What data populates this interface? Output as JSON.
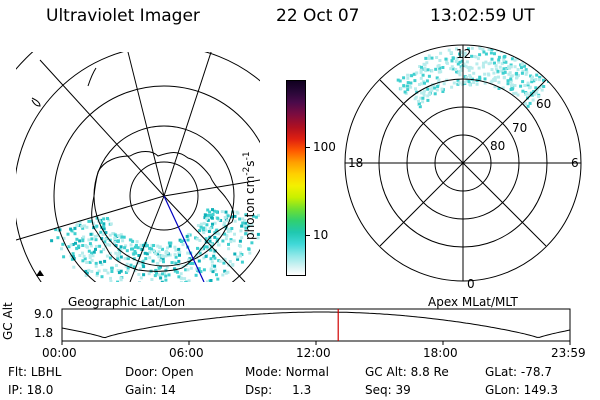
{
  "header": {
    "title": "Ultraviolet Imager",
    "date": "22 Oct 07",
    "time": "13:02:59 UT"
  },
  "colorbar": {
    "ticks": [
      "100",
      "10"
    ],
    "unit_main": "photon cm",
    "unit_sup1": "-2",
    "unit_s": "s",
    "unit_sup2": "-1"
  },
  "maps": {
    "left_label": "Geographic Lat/Lon",
    "right_label": "Apex MLat/MLT",
    "right_mlt": {
      "top": "12",
      "left": "18",
      "right": "6",
      "bottom": "0"
    },
    "right_rings": [
      "60",
      "70",
      "80"
    ]
  },
  "altitude_plot": {
    "ylabel": "GC Alt",
    "yticks": [
      "9.0",
      "1.8"
    ],
    "xticks": [
      "00:00",
      "06:00",
      "12:00",
      "18:00",
      "23:59"
    ],
    "current_marker_hours": 13.05,
    "marker_color": "#d00000"
  },
  "info": {
    "row1": [
      {
        "label": "Flt:",
        "value": "LBHL"
      },
      {
        "label": "Door:",
        "value": "Open"
      },
      {
        "label": "Mode:",
        "value": "Normal"
      },
      {
        "label": "GC Alt:",
        "value": "8.8 Re"
      },
      {
        "label": "GLat:",
        "value": "-78.7"
      }
    ],
    "row2": [
      {
        "label": "IP:",
        "value": "18.0"
      },
      {
        "label": "Gain:",
        "value": "14"
      },
      {
        "label": "Dsp:",
        "value": "1.3"
      },
      {
        "label": "Seq:",
        "value": "39"
      },
      {
        "label": "GLon:",
        "value": "149.3"
      }
    ]
  },
  "colors": {
    "aurora_light": "#b8ecec",
    "aurora_mid": "#40d0d0",
    "aurora_dark": "#10b0b8",
    "line": "#000000",
    "blue_line": "#0000c0"
  }
}
